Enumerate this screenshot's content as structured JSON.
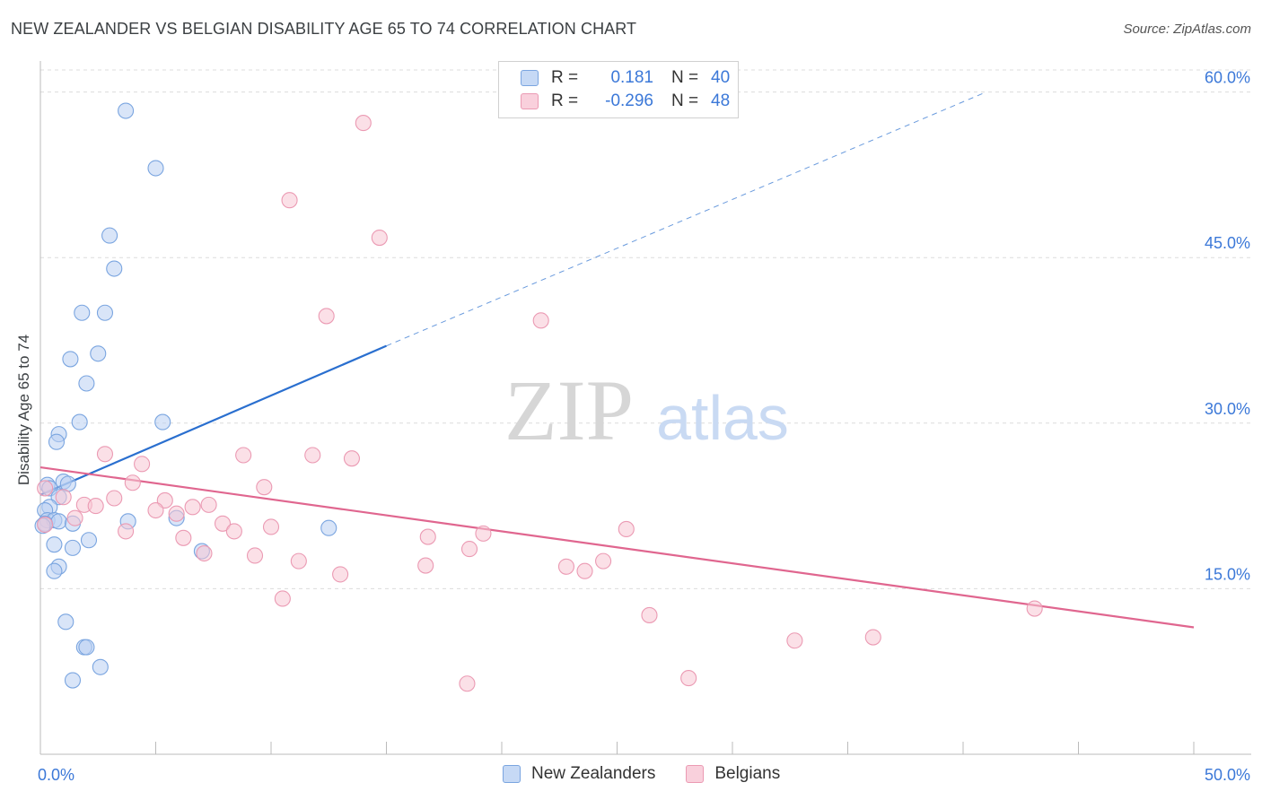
{
  "header": {
    "title": "NEW ZEALANDER VS BELGIAN DISABILITY AGE 65 TO 74 CORRELATION CHART",
    "source": "Source: ZipAtlas.com"
  },
  "legend": {
    "rows": [
      {
        "r_label": "R =",
        "r_value": "0.181",
        "n_label": "N =",
        "n_value": "40"
      },
      {
        "r_label": "R =",
        "r_value": "-0.296",
        "n_label": "N =",
        "n_value": "48"
      }
    ]
  },
  "bottom_legend": {
    "items": [
      "New Zealanders",
      "Belgians"
    ]
  },
  "watermark": {
    "zip": "ZIP",
    "atlas": "atlas"
  },
  "colors": {
    "blue_fill": "#b9d0f2",
    "blue_stroke": "#7aa5e0",
    "blue_line": "#2a6fcf",
    "pink_fill": "#f7c6d4",
    "pink_stroke": "#eb9ab3",
    "pink_line": "#e0668f",
    "axis_label": "#3b78d8",
    "grid": "#dcdcdc"
  },
  "chart_data": {
    "type": "scatter",
    "title": "NEW ZEALANDER VS BELGIAN DISABILITY AGE 65 TO 74 CORRELATION CHART",
    "xlabel": "",
    "ylabel": "Disability Age 65 to 74",
    "xlim": [
      0,
      50
    ],
    "ylim": [
      0,
      62
    ],
    "x_tick_labels": [
      "0.0%",
      "50.0%"
    ],
    "y_ticks": [
      15,
      30,
      45,
      60
    ],
    "y_tick_labels": [
      "15.0%",
      "30.0%",
      "45.0%",
      "60.0%"
    ],
    "grid": true,
    "legend_position": "top-center",
    "series": [
      {
        "name": "New Zealanders",
        "R": 0.181,
        "N": 40,
        "trend": {
          "x0": 0,
          "y0": 23.5,
          "x1": 15,
          "y1": 37.0,
          "dash_to_x": 41,
          "dash_to_y": 60
        },
        "points": [
          [
            3.7,
            58.3
          ],
          [
            5.0,
            53.1
          ],
          [
            3.0,
            47.0
          ],
          [
            3.2,
            44.0
          ],
          [
            1.8,
            40.0
          ],
          [
            2.8,
            40.0
          ],
          [
            2.5,
            36.3
          ],
          [
            1.3,
            35.8
          ],
          [
            2.0,
            33.6
          ],
          [
            1.7,
            30.1
          ],
          [
            5.3,
            30.1
          ],
          [
            0.8,
            29.0
          ],
          [
            0.7,
            28.3
          ],
          [
            0.3,
            24.4
          ],
          [
            1.0,
            24.7
          ],
          [
            1.2,
            24.5
          ],
          [
            0.4,
            24.1
          ],
          [
            0.8,
            23.3
          ],
          [
            0.4,
            22.4
          ],
          [
            0.2,
            22.1
          ],
          [
            0.3,
            21.2
          ],
          [
            0.6,
            21.2
          ],
          [
            0.2,
            20.9
          ],
          [
            0.8,
            21.1
          ],
          [
            3.8,
            21.1
          ],
          [
            5.9,
            21.4
          ],
          [
            1.4,
            20.9
          ],
          [
            12.5,
            20.5
          ],
          [
            0.1,
            20.7
          ],
          [
            2.1,
            19.4
          ],
          [
            0.6,
            19.0
          ],
          [
            1.4,
            18.7
          ],
          [
            7.0,
            18.4
          ],
          [
            0.8,
            17.0
          ],
          [
            0.6,
            16.6
          ],
          [
            1.1,
            12.0
          ],
          [
            1.9,
            9.7
          ],
          [
            2.0,
            9.7
          ],
          [
            2.6,
            7.9
          ],
          [
            1.4,
            6.7
          ]
        ]
      },
      {
        "name": "Belgians",
        "R": -0.296,
        "N": 48,
        "trend": {
          "x0": 0,
          "y0": 26.0,
          "x1": 50,
          "y1": 11.5
        },
        "points": [
          [
            14.0,
            57.2
          ],
          [
            10.8,
            50.2
          ],
          [
            14.7,
            46.8
          ],
          [
            12.4,
            39.7
          ],
          [
            21.7,
            39.3
          ],
          [
            2.8,
            27.2
          ],
          [
            8.8,
            27.1
          ],
          [
            11.8,
            27.1
          ],
          [
            13.5,
            26.8
          ],
          [
            4.4,
            26.3
          ],
          [
            4.0,
            24.6
          ],
          [
            9.7,
            24.2
          ],
          [
            0.2,
            24.1
          ],
          [
            1.0,
            23.3
          ],
          [
            3.2,
            23.2
          ],
          [
            5.4,
            23.0
          ],
          [
            1.9,
            22.6
          ],
          [
            7.3,
            22.6
          ],
          [
            2.4,
            22.5
          ],
          [
            6.6,
            22.4
          ],
          [
            5.0,
            22.1
          ],
          [
            5.9,
            21.8
          ],
          [
            1.5,
            21.4
          ],
          [
            7.9,
            20.9
          ],
          [
            0.2,
            20.8
          ],
          [
            10.0,
            20.6
          ],
          [
            25.4,
            20.4
          ],
          [
            8.4,
            20.2
          ],
          [
            3.7,
            20.2
          ],
          [
            19.2,
            20.0
          ],
          [
            16.8,
            19.7
          ],
          [
            6.2,
            19.6
          ],
          [
            18.6,
            18.6
          ],
          [
            9.3,
            18.0
          ],
          [
            7.1,
            18.2
          ],
          [
            11.2,
            17.5
          ],
          [
            24.4,
            17.5
          ],
          [
            16.7,
            17.1
          ],
          [
            22.8,
            17.0
          ],
          [
            23.6,
            16.6
          ],
          [
            13.0,
            16.3
          ],
          [
            10.5,
            14.1
          ],
          [
            26.4,
            12.6
          ],
          [
            43.1,
            13.2
          ],
          [
            32.7,
            10.3
          ],
          [
            36.1,
            10.6
          ],
          [
            28.1,
            6.9
          ],
          [
            18.5,
            6.4
          ]
        ]
      }
    ]
  }
}
